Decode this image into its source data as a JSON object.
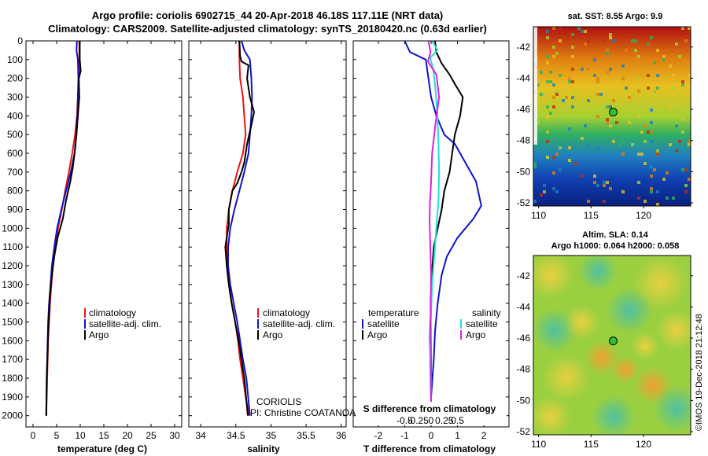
{
  "title": {
    "line1": "Argo profile: coriolis 6902715_44 20-Apr-2018 46.18S 117.11E (NRT data)",
    "line2": "Climatology: CARS2009. Satellite-adjusted climatology: synTS_20180420.nc (0.63d earlier)"
  },
  "colors": {
    "climatology": "#ee1111",
    "satellite": "#1111cc",
    "argo": "#000000",
    "salinity_satellite": "#22dddd",
    "salinity_argo": "#dd22dd"
  },
  "depth_axis": {
    "ticks": [
      "0",
      "100",
      "200",
      "300",
      "400",
      "500",
      "600",
      "700",
      "800",
      "900",
      "1000",
      "1100",
      "1200",
      "1300",
      "1400",
      "1500",
      "1600",
      "1700",
      "1800",
      "1900",
      "2000"
    ],
    "range": [
      0,
      2060
    ]
  },
  "chart_data": [
    {
      "type": "line",
      "id": "temperature",
      "xlabel": "temperature (deg C)",
      "ylabel": "",
      "xlim": [
        -1.5,
        31.5
      ],
      "ylim": [
        2060,
        0
      ],
      "xticks": [
        0,
        5,
        10,
        15,
        20,
        25,
        30
      ],
      "xtick_labels": [
        "0",
        "5",
        "10",
        "15",
        "20",
        "25",
        "30"
      ],
      "legend": [
        "climatology",
        "satellite-adj. clim.",
        "Argo"
      ],
      "series": [
        {
          "name": "climatology",
          "color": "#ee1111",
          "x": [
            9.8,
            9.8,
            9.7,
            9.5,
            9.3,
            8.9,
            8.3,
            7.6,
            6.8,
            6.1,
            5.3,
            4.7,
            4.2,
            3.9,
            3.6,
            3.4,
            3.2,
            3.1,
            3.0,
            2.9,
            2.8
          ],
          "y": [
            0,
            100,
            200,
            300,
            400,
            500,
            600,
            700,
            800,
            900,
            1000,
            1100,
            1200,
            1300,
            1400,
            1500,
            1600,
            1700,
            1800,
            1900,
            2000
          ]
        },
        {
          "name": "satellite-adj. clim.",
          "color": "#1111cc",
          "x": [
            9.3,
            9.2,
            9.5,
            9.6,
            9.5,
            9.4,
            9.2,
            8.8,
            8.0,
            7.0,
            6.0,
            5.1,
            4.5,
            4.0,
            3.7,
            3.4,
            3.2,
            3.1,
            3.0,
            2.9,
            2.8
          ],
          "y": [
            0,
            50,
            100,
            200,
            300,
            400,
            500,
            600,
            700,
            800,
            900,
            1000,
            1100,
            1200,
            1300,
            1400,
            1500,
            1600,
            1700,
            1800,
            2000
          ]
        },
        {
          "name": "Argo",
          "color": "#000000",
          "x": [
            9.9,
            9.9,
            10.0,
            10.1,
            9.7,
            9.8,
            9.5,
            9.2,
            8.8,
            8.4,
            7.9,
            7.0,
            6.3,
            5.2,
            4.5,
            4.0,
            3.6,
            3.4,
            3.2,
            3.1,
            2.9,
            2.8
          ],
          "y": [
            0,
            100,
            130,
            160,
            200,
            300,
            400,
            500,
            600,
            680,
            750,
            850,
            950,
            1050,
            1150,
            1250,
            1350,
            1450,
            1550,
            1650,
            1800,
            2000
          ]
        }
      ]
    },
    {
      "type": "line",
      "id": "salinity",
      "xlabel": "salinity",
      "ylabel": "",
      "xlim": [
        33.83,
        36.07
      ],
      "ylim": [
        2060,
        0
      ],
      "xticks": [
        34,
        34.5,
        35,
        35.5,
        36
      ],
      "xtick_labels": [
        "34",
        "34.5",
        "35",
        "35.5",
        "36"
      ],
      "legend": [
        "climatology",
        "satellite-adj. clim.",
        "Argo"
      ],
      "annotation": [
        "CORIOLIS",
        "PI: Christine COATANOAN"
      ],
      "series": [
        {
          "name": "climatology",
          "color": "#ee1111",
          "x": [
            34.55,
            34.55,
            34.56,
            34.6,
            34.62,
            34.64,
            34.6,
            34.52,
            34.45,
            34.4,
            34.37,
            34.37,
            34.38,
            34.4,
            34.44,
            34.49,
            34.53,
            34.56,
            34.6,
            34.64,
            34.69
          ],
          "y": [
            0,
            100,
            200,
            300,
            400,
            500,
            600,
            700,
            800,
            900,
            1000,
            1100,
            1200,
            1300,
            1400,
            1500,
            1600,
            1700,
            1800,
            1900,
            2000
          ]
        },
        {
          "name": "satellite-adj. clim.",
          "color": "#1111cc",
          "x": [
            34.58,
            34.62,
            34.7,
            34.72,
            34.73,
            34.72,
            34.7,
            34.68,
            34.62,
            34.55,
            34.48,
            34.42,
            34.39,
            34.39,
            34.42,
            34.47,
            34.52,
            34.56,
            34.6,
            34.65,
            34.7
          ],
          "y": [
            0,
            50,
            100,
            200,
            300,
            400,
            500,
            600,
            700,
            800,
            900,
            1000,
            1100,
            1200,
            1300,
            1400,
            1500,
            1600,
            1700,
            1800,
            2000
          ]
        },
        {
          "name": "Argo",
          "color": "#000000",
          "x": [
            34.55,
            34.56,
            34.58,
            34.68,
            34.66,
            34.7,
            34.76,
            34.72,
            34.66,
            34.62,
            34.58,
            34.52,
            34.45,
            34.4,
            34.4,
            34.37,
            34.35,
            34.37,
            34.4,
            34.44,
            34.49,
            34.54,
            34.58,
            34.62,
            34.67
          ],
          "y": [
            0,
            80,
            110,
            130,
            200,
            300,
            380,
            450,
            550,
            650,
            700,
            760,
            800,
            900,
            980,
            1050,
            1100,
            1200,
            1300,
            1400,
            1500,
            1600,
            1700,
            1800,
            2000
          ]
        }
      ]
    },
    {
      "type": "line",
      "id": "differences",
      "xlabel": "T difference from climatology",
      "xlabel_top": "S difference from climatology",
      "ylabel": "",
      "xlim": [
        -2.95,
        2.95
      ],
      "ylim": [
        2060,
        0
      ],
      "xticks": [
        -2,
        -1,
        0,
        1,
        2
      ],
      "xtick_labels": [
        "-2",
        "-1",
        "0",
        "1",
        "2"
      ],
      "sticks": [
        -0.5,
        -0.25,
        0,
        0.25,
        0.5
      ],
      "stick_labels": [
        "-0.5",
        "-0.25",
        "0",
        "0.25",
        "0.5"
      ],
      "legend_temperature_title": "temperature",
      "legend_temperature": [
        "satellite",
        "Argo"
      ],
      "legend_salinity_title": "salinity",
      "legend_salinity": [
        "satellite",
        "Argo"
      ],
      "series": [
        {
          "name": "satellite",
          "color": "#1111cc",
          "quantity": "temperature",
          "x": [
            -1.0,
            -0.8,
            -0.2,
            -0.1,
            0.0,
            0.2,
            0.5,
            0.9,
            1.3,
            1.7,
            1.9,
            1.6,
            1.0,
            0.6,
            0.4,
            0.25,
            0.15,
            0.1,
            0.05,
            0.0,
            0.0
          ],
          "y": [
            0,
            60,
            100,
            200,
            300,
            400,
            500,
            550,
            650,
            750,
            880,
            950,
            1050,
            1150,
            1250,
            1400,
            1550,
            1700,
            1800,
            1900,
            2000
          ]
        },
        {
          "name": "Argo",
          "color": "#000000",
          "quantity": "temperature",
          "x": [
            0.15,
            0.2,
            0.4,
            0.7,
            0.9,
            1.2,
            1.1,
            0.9,
            0.8,
            0.7,
            0.5,
            0.4,
            0.25,
            0.1,
            0.05,
            0.0,
            -0.05,
            0.0,
            0.0
          ],
          "y": [
            0,
            60,
            120,
            180,
            230,
            300,
            400,
            500,
            600,
            700,
            800,
            900,
            1000,
            1100,
            1200,
            1400,
            1600,
            1800,
            2000
          ]
        },
        {
          "name": "satellite",
          "color": "#22dddd",
          "quantity": "salinity",
          "x": [
            0.02,
            0.12,
            -0.02,
            0.04,
            0.08,
            0.12,
            0.14,
            0.15,
            0.14,
            0.1,
            0.06,
            0.02,
            0.0,
            -0.02,
            -0.02,
            -0.01,
            0.0,
            0.0
          ],
          "y": [
            0,
            50,
            90,
            150,
            250,
            400,
            550,
            700,
            850,
            1000,
            1150,
            1300,
            1450,
            1600,
            1750,
            1850,
            1950,
            2000
          ]
        },
        {
          "name": "Argo",
          "color": "#dd22dd",
          "quantity": "salinity",
          "x": [
            -0.05,
            -0.01,
            -0.06,
            0.1,
            0.15,
            0.08,
            0.02,
            0.0,
            -0.02,
            -0.03,
            -0.02,
            -0.01,
            0.0,
            -0.01,
            0.0,
            0.0
          ],
          "y": [
            0,
            60,
            110,
            180,
            300,
            450,
            600,
            750,
            850,
            950,
            1050,
            1150,
            1250,
            1400,
            1700,
            2000
          ]
        }
      ]
    },
    {
      "type": "heatmap",
      "id": "sst_map",
      "title": "sat. SST: 8.55 Argo: 9.9",
      "xlim": [
        109.5,
        124.5
      ],
      "ylim": [
        -52.2,
        -40.7
      ],
      "xticks": [
        110,
        115,
        120
      ],
      "yticks": [
        -52,
        -50,
        -48,
        -46,
        -44,
        -42
      ],
      "marker": {
        "lon": 117.11,
        "lat": -46.18
      }
    },
    {
      "type": "heatmap",
      "id": "sla_map",
      "title": "Altim. SLA: 0.14",
      "subtitle": "Argo h1000: 0.064 h2000: 0.058",
      "xlim": [
        109.5,
        124.5
      ],
      "ylim": [
        -52.2,
        -40.7
      ],
      "xticks": [
        110,
        115,
        120
      ],
      "yticks": [
        -52,
        -50,
        -48,
        -46,
        -44,
        -42
      ],
      "marker": {
        "lon": 117.11,
        "lat": -46.18
      }
    }
  ],
  "footer_stamp": "©IMOS 19-Dec-2018 21:12:48"
}
